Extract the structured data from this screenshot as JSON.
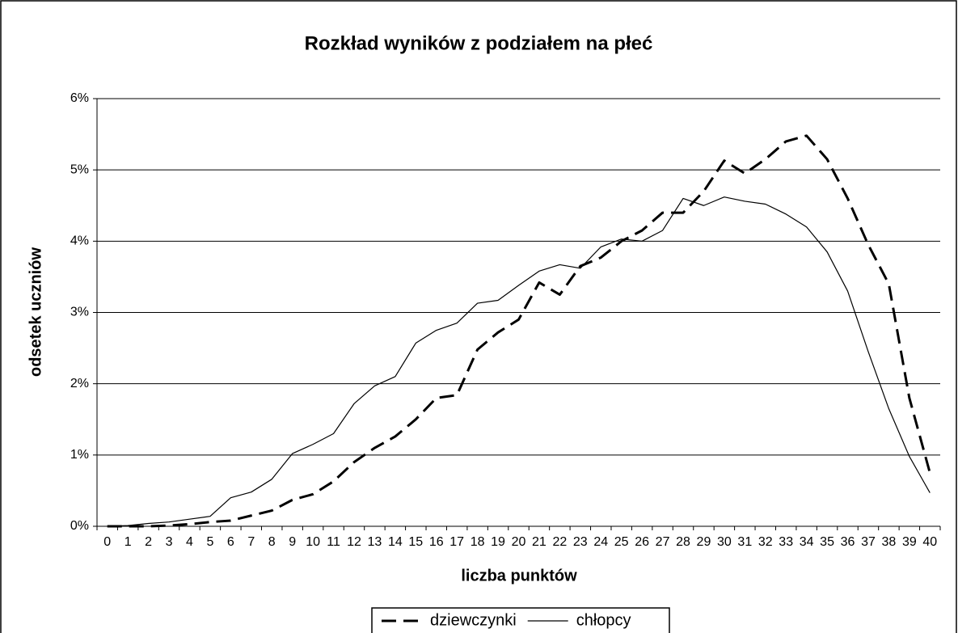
{
  "chart_data": {
    "type": "line",
    "title": "Rozkład wyników z podziałem na płeć",
    "x_label": "liczba punktów",
    "y_label": "odsetek uczniów",
    "categories": [
      "0",
      "1",
      "2",
      "3",
      "4",
      "5",
      "6",
      "7",
      "8",
      "9",
      "10",
      "11",
      "12",
      "13",
      "14",
      "15",
      "16",
      "17",
      "18",
      "19",
      "20",
      "21",
      "22",
      "23",
      "24",
      "25",
      "26",
      "27",
      "28",
      "29",
      "30",
      "31",
      "32",
      "33",
      "34",
      "35",
      "36",
      "37",
      "38",
      "39",
      "40"
    ],
    "series": [
      {
        "name": "dziewczynki",
        "color": "#000000",
        "dashed": true,
        "values": [
          0,
          0,
          0,
          0.01,
          0.03,
          0.06,
          0.08,
          0.15,
          0.22,
          0.37,
          0.45,
          0.63,
          0.9,
          1.1,
          1.26,
          1.5,
          1.8,
          1.84,
          2.48,
          2.72,
          2.9,
          3.42,
          3.25,
          3.65,
          3.77,
          4.0,
          4.15,
          4.4,
          4.4,
          4.7,
          5.13,
          4.95,
          5.15,
          5.4,
          5.48,
          5.15,
          4.6,
          3.95,
          3.4,
          1.8,
          0.75
        ]
      },
      {
        "name": "chłopcy",
        "color": "#000000",
        "dashed": false,
        "values": [
          0,
          0.01,
          0.04,
          0.06,
          0.1,
          0.14,
          0.4,
          0.48,
          0.66,
          1.02,
          1.15,
          1.3,
          1.72,
          1.97,
          2.1,
          2.57,
          2.75,
          2.85,
          3.13,
          3.17,
          3.38,
          3.58,
          3.67,
          3.62,
          3.92,
          4.03,
          4.0,
          4.15,
          4.6,
          4.5,
          4.62,
          4.56,
          4.52,
          4.38,
          4.2,
          3.85,
          3.3,
          2.45,
          1.65,
          0.98,
          0.47
        ]
      }
    ],
    "ylim": [
      0,
      6
    ],
    "yticks": [
      {
        "value": 0,
        "label": "0%"
      },
      {
        "value": 1,
        "label": "1%"
      },
      {
        "value": 2,
        "label": "2%"
      },
      {
        "value": 3,
        "label": "3%"
      },
      {
        "value": 4,
        "label": "4%"
      },
      {
        "value": 5,
        "label": "5%"
      },
      {
        "value": 6,
        "label": "6%"
      }
    ],
    "grid": true,
    "legend": "bottom"
  }
}
